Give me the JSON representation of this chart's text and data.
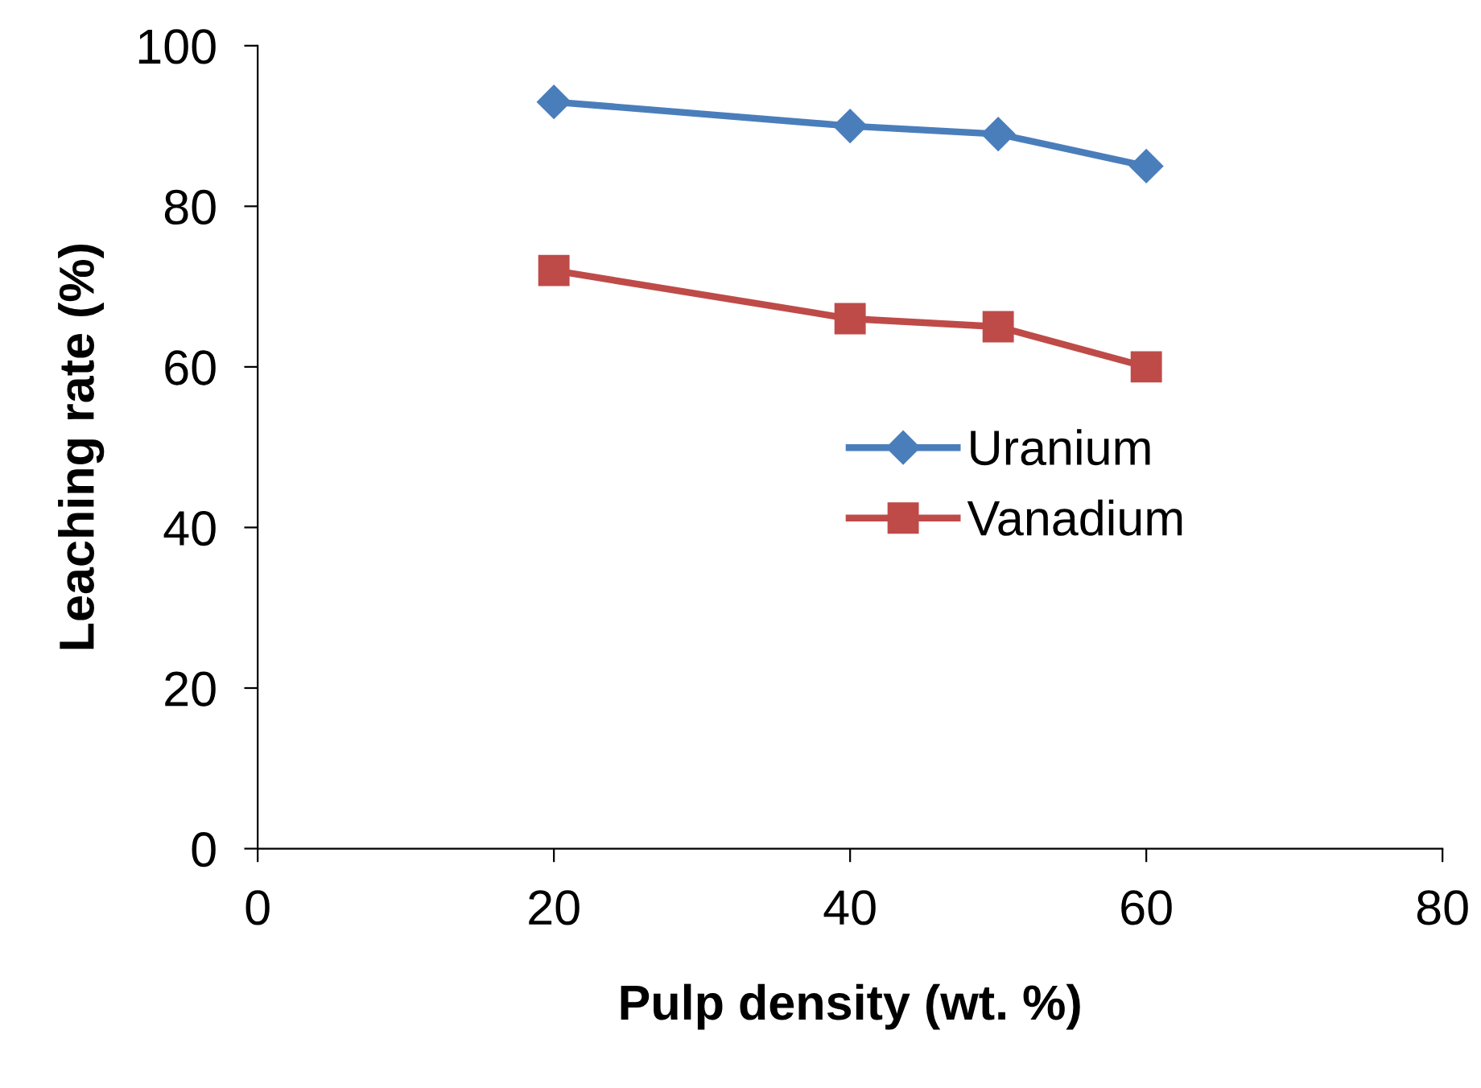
{
  "chart_data": {
    "type": "line",
    "xlabel": "Pulp density (wt. %)",
    "ylabel": "Leaching rate (%)",
    "x": [
      20,
      40,
      50,
      60
    ],
    "series": [
      {
        "name": "Uranium",
        "color": "#4a7ebb",
        "marker": "diamond",
        "values": [
          93,
          90,
          89,
          85
        ]
      },
      {
        "name": "Vanadium",
        "color": "#be4b48",
        "marker": "square",
        "values": [
          72,
          66,
          65,
          60
        ]
      }
    ],
    "xlim": [
      0,
      80
    ],
    "xticks": [
      0,
      20,
      40,
      60,
      80
    ],
    "ylim": [
      0,
      100
    ],
    "yticks": [
      0,
      20,
      40,
      60,
      80,
      100
    ],
    "grid": false,
    "legend": "right",
    "line_style": "solid"
  }
}
